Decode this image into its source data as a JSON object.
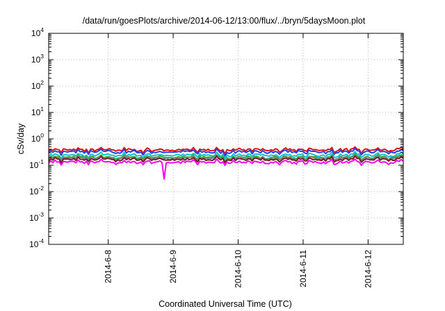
{
  "chart_data": {
    "type": "line",
    "title": "/data/run/goesPlots/archive/2014-06-12/13:00/flux/../bryn/5daysMoon.plot",
    "xlabel": "Coordinated Universal Time (UTC)",
    "ylabel": "cSv/day",
    "y_scale": "log",
    "ylim": [
      0.0001,
      10000
    ],
    "xlim": [
      "2014-06-07 02:00",
      "2014-06-12 13:00"
    ],
    "grid": true,
    "legend": "none",
    "y_ticks": [
      {
        "base": "10",
        "exp": "-4",
        "value": 0.0001
      },
      {
        "base": "10",
        "exp": "-3",
        "value": 0.001
      },
      {
        "base": "10",
        "exp": "-2",
        "value": 0.01
      },
      {
        "base": "10",
        "exp": "-1",
        "value": 0.1
      },
      {
        "base": "10",
        "exp": "0",
        "value": 1
      },
      {
        "base": "10",
        "exp": "1",
        "value": 10
      },
      {
        "base": "10",
        "exp": "2",
        "value": 100
      },
      {
        "base": "10",
        "exp": "3",
        "value": 1000
      },
      {
        "base": "10",
        "exp": "4",
        "value": 10000
      }
    ],
    "x_ticks": [
      {
        "label": "2014-6-8",
        "date": "2014-06-08"
      },
      {
        "label": "2014-6-9",
        "date": "2014-06-09"
      },
      {
        "label": "2014-6-10",
        "date": "2014-06-10"
      },
      {
        "label": "2014-6-11",
        "date": "2014-06-11"
      },
      {
        "label": "2014-6-12",
        "date": "2014-06-12"
      }
    ],
    "series": [
      {
        "color": "#e01010",
        "level": 0.38
      },
      {
        "color": "#2040f0",
        "level": 0.32
      },
      {
        "color": "#10c0d0",
        "level": 0.24
      },
      {
        "color": "#30b030",
        "level": 0.2
      },
      {
        "color": "#808080",
        "level": 0.185
      },
      {
        "color": "#702020",
        "level": 0.165
      },
      {
        "color": "#ff00ff",
        "level": 0.13,
        "dip": {
          "date": "2014-06-08 20:30",
          "value": 0.03
        }
      }
    ]
  }
}
